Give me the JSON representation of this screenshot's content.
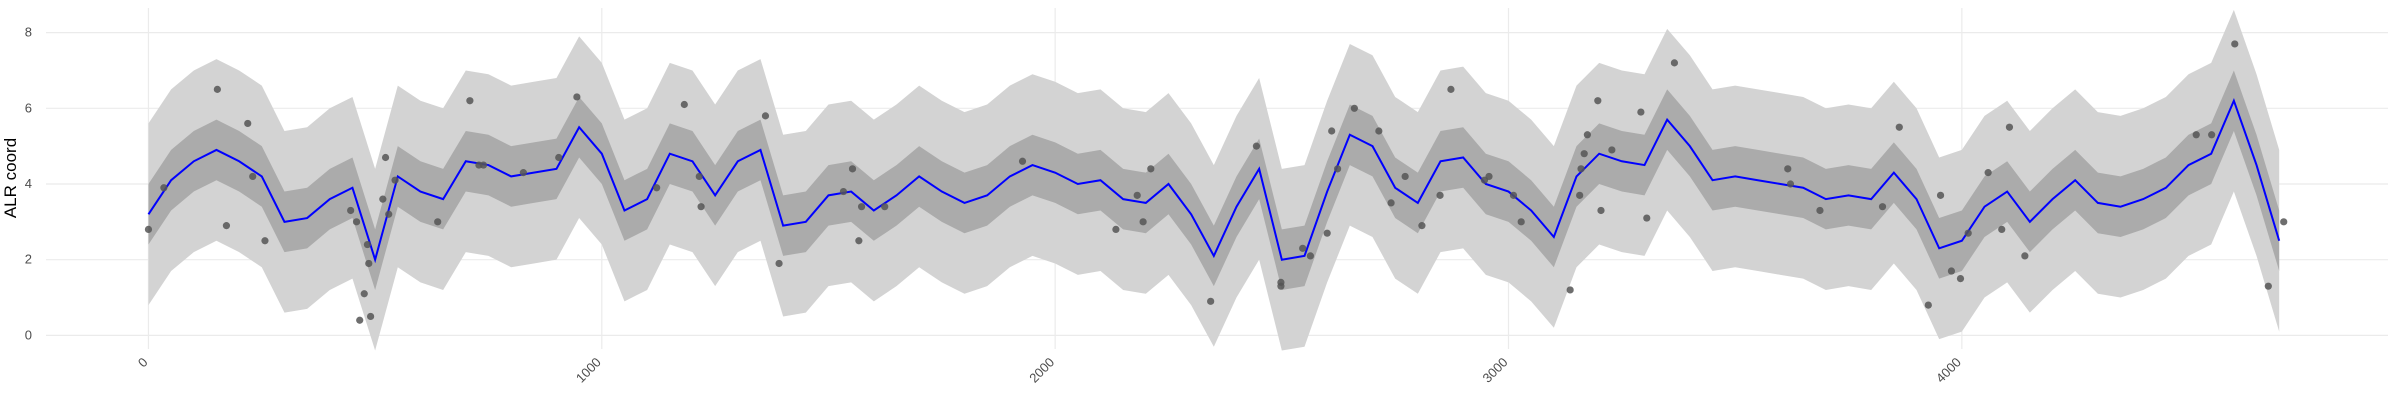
{
  "chart_data": {
    "type": "line",
    "y_label": "ALR coord",
    "xlim": [
      -226,
      4940
    ],
    "ylim": [
      -0.36,
      8.65
    ],
    "xticks": [
      0,
      1000,
      2000,
      3000,
      4000
    ],
    "yticks": [
      0,
      2,
      4,
      6,
      8
    ],
    "grid": true,
    "x": [
      0,
      50,
      100,
      150,
      200,
      250,
      300,
      350,
      400,
      450,
      500,
      550,
      600,
      650,
      700,
      750,
      800,
      850,
      900,
      950,
      1000,
      1050,
      1100,
      1150,
      1200,
      1250,
      1300,
      1350,
      1400,
      1450,
      1500,
      1550,
      1600,
      1650,
      1700,
      1750,
      1800,
      1850,
      1900,
      1950,
      2000,
      2050,
      2100,
      2150,
      2200,
      2250,
      2300,
      2350,
      2400,
      2450,
      2500,
      2550,
      2600,
      2650,
      2700,
      2750,
      2800,
      2850,
      2900,
      2950,
      3000,
      3050,
      3100,
      3150,
      3200,
      3250,
      3300,
      3350,
      3400,
      3450,
      3500,
      3550,
      3600,
      3650,
      3700,
      3750,
      3800,
      3850,
      3900,
      3950,
      4000,
      4050,
      4100,
      4150,
      4200,
      4250,
      4300,
      4350,
      4400,
      4450,
      4500,
      4550,
      4600,
      4650,
      4700
    ],
    "bands": [
      {
        "color": "#d3d3d3",
        "lower": [
          0.8,
          1.7,
          2.2,
          2.5,
          2.2,
          1.8,
          0.6,
          0.7,
          1.2,
          1.5,
          -0.4,
          1.8,
          1.4,
          1.2,
          2.2,
          2.1,
          1.8,
          1.9,
          2.0,
          3.1,
          2.4,
          0.9,
          1.2,
          2.4,
          2.2,
          1.3,
          2.2,
          2.5,
          0.5,
          0.6,
          1.3,
          1.4,
          0.9,
          1.3,
          1.8,
          1.4,
          1.1,
          1.3,
          1.8,
          2.1,
          1.9,
          1.6,
          1.7,
          1.2,
          1.1,
          1.6,
          0.8,
          -0.3,
          1.0,
          2.0,
          -0.4,
          -0.3,
          1.4,
          2.9,
          2.6,
          1.5,
          1.1,
          2.2,
          2.3,
          1.6,
          1.4,
          0.9,
          0.2,
          1.8,
          2.4,
          2.2,
          2.1,
          3.3,
          2.6,
          1.7,
          1.8,
          1.7,
          1.6,
          1.5,
          1.2,
          1.3,
          1.2,
          1.9,
          1.2,
          -0.1,
          0.1,
          1.0,
          1.4,
          0.6,
          1.2,
          1.7,
          1.1,
          1.0,
          1.2,
          1.5,
          2.1,
          2.4,
          3.8,
          2.1,
          0.1
        ],
        "upper": [
          5.6,
          6.5,
          7.0,
          7.3,
          7.0,
          6.6,
          5.4,
          5.5,
          6.0,
          6.3,
          4.4,
          6.6,
          6.2,
          6.0,
          7.0,
          6.9,
          6.6,
          6.7,
          6.8,
          7.9,
          7.2,
          5.7,
          6.0,
          7.2,
          7.0,
          6.1,
          7.0,
          7.3,
          5.3,
          5.4,
          6.1,
          6.2,
          5.7,
          6.1,
          6.6,
          6.2,
          5.9,
          6.1,
          6.6,
          6.9,
          6.7,
          6.4,
          6.5,
          6.0,
          5.9,
          6.4,
          5.6,
          4.5,
          5.8,
          6.8,
          4.4,
          4.5,
          6.2,
          7.7,
          7.4,
          6.3,
          5.9,
          7.0,
          7.1,
          6.4,
          6.2,
          5.7,
          5.0,
          6.6,
          7.2,
          7.0,
          6.9,
          8.1,
          7.4,
          6.5,
          6.6,
          6.5,
          6.4,
          6.3,
          6.0,
          6.1,
          6.0,
          6.7,
          6.0,
          4.7,
          4.9,
          5.8,
          6.2,
          5.4,
          6.0,
          6.5,
          5.9,
          5.8,
          6.0,
          6.3,
          6.9,
          7.2,
          8.6,
          6.9,
          4.9
        ]
      },
      {
        "color": "#ababab",
        "lower": [
          2.4,
          3.3,
          3.8,
          4.1,
          3.8,
          3.4,
          2.2,
          2.3,
          2.8,
          3.1,
          1.2,
          3.4,
          3.0,
          2.8,
          3.8,
          3.7,
          3.4,
          3.5,
          3.6,
          4.7,
          4.0,
          2.5,
          2.8,
          4.0,
          3.8,
          2.9,
          3.8,
          4.1,
          2.1,
          2.2,
          2.9,
          3.0,
          2.5,
          2.9,
          3.4,
          3.0,
          2.7,
          2.9,
          3.4,
          3.7,
          3.5,
          3.2,
          3.3,
          2.8,
          2.7,
          3.2,
          2.4,
          1.3,
          2.6,
          3.6,
          1.2,
          1.3,
          3.0,
          4.5,
          4.2,
          3.1,
          2.7,
          3.8,
          3.9,
          3.2,
          3.0,
          2.5,
          1.8,
          3.4,
          4.0,
          3.8,
          3.7,
          4.9,
          4.2,
          3.3,
          3.4,
          3.3,
          3.2,
          3.1,
          2.8,
          2.9,
          2.8,
          3.5,
          2.8,
          1.5,
          1.7,
          2.6,
          3.0,
          2.2,
          2.8,
          3.3,
          2.7,
          2.6,
          2.8,
          3.1,
          3.7,
          4.0,
          5.4,
          3.7,
          1.7
        ],
        "upper": [
          4.0,
          4.9,
          5.4,
          5.7,
          5.4,
          5.0,
          3.8,
          3.9,
          4.4,
          4.7,
          2.8,
          5.0,
          4.6,
          4.4,
          5.4,
          5.3,
          5.0,
          5.1,
          5.2,
          6.3,
          5.6,
          4.1,
          4.4,
          5.6,
          5.4,
          4.5,
          5.4,
          5.7,
          3.7,
          3.8,
          4.5,
          4.6,
          4.1,
          4.5,
          5.0,
          4.6,
          4.3,
          4.5,
          5.0,
          5.3,
          5.1,
          4.8,
          4.9,
          4.4,
          4.3,
          4.8,
          4.0,
          2.9,
          4.2,
          5.2,
          2.8,
          2.9,
          4.6,
          6.1,
          5.8,
          4.7,
          4.3,
          5.4,
          5.5,
          4.8,
          4.6,
          4.1,
          3.4,
          5.0,
          5.6,
          5.4,
          5.3,
          6.5,
          5.8,
          4.9,
          5.0,
          4.9,
          4.8,
          4.7,
          4.4,
          4.5,
          4.4,
          5.1,
          4.4,
          3.1,
          3.3,
          4.2,
          4.6,
          3.8,
          4.4,
          4.9,
          4.3,
          4.2,
          4.4,
          4.7,
          5.3,
          5.6,
          7.0,
          5.3,
          3.3
        ]
      }
    ],
    "mean": {
      "color": "#0000ff",
      "values": [
        3.2,
        4.1,
        4.6,
        4.9,
        4.6,
        4.2,
        3.0,
        3.1,
        3.6,
        3.9,
        2.0,
        4.2,
        3.8,
        3.6,
        4.6,
        4.5,
        4.2,
        4.3,
        4.4,
        5.5,
        4.8,
        3.3,
        3.6,
        4.8,
        4.6,
        3.7,
        4.6,
        4.9,
        2.9,
        3.0,
        3.7,
        3.8,
        3.3,
        3.7,
        4.2,
        3.8,
        3.5,
        3.7,
        4.2,
        4.5,
        4.3,
        4.0,
        4.1,
        3.6,
        3.5,
        4.0,
        3.2,
        2.1,
        3.4,
        4.4,
        2.0,
        2.1,
        3.8,
        5.3,
        5.0,
        3.9,
        3.5,
        4.6,
        4.7,
        4.0,
        3.8,
        3.3,
        2.6,
        4.2,
        4.8,
        4.6,
        4.5,
        5.7,
        5.0,
        4.1,
        4.2,
        4.1,
        4.0,
        3.9,
        3.6,
        3.7,
        3.6,
        4.3,
        3.6,
        2.3,
        2.5,
        3.4,
        3.8,
        3.0,
        3.6,
        4.1,
        3.5,
        3.4,
        3.6,
        3.9,
        4.5,
        4.8,
        6.2,
        4.5,
        2.5
      ]
    },
    "points": {
      "color": "#555555",
      "x": [
        0,
        34,
        152,
        172,
        219,
        230,
        257,
        446,
        459,
        466,
        476,
        483,
        486,
        490,
        517,
        523,
        530,
        544,
        638,
        709,
        729,
        739,
        827,
        905,
        945,
        1121,
        1182,
        1215,
        1219,
        1361,
        1391,
        1533,
        1553,
        1567,
        1573,
        1624,
        1928,
        2134,
        2181,
        2194,
        2211,
        2343,
        2444,
        2498,
        2498,
        2546,
        2563,
        2600,
        2610,
        2623,
        2660,
        2714,
        2741,
        2772,
        2809,
        2849,
        2873,
        2947,
        2957,
        3011,
        3028,
        3136,
        3157,
        3160,
        3167,
        3174,
        3197,
        3204,
        3228,
        3292,
        3305,
        3366,
        3616,
        3622,
        3687,
        3825,
        3862,
        3926,
        3953,
        3977,
        3997,
        4014,
        4058,
        4088,
        4105,
        4139,
        4517,
        4551,
        4602,
        4676,
        4710
      ],
      "y": [
        2.8,
        3.9,
        6.5,
        2.9,
        5.6,
        4.2,
        2.5,
        3.3,
        3.0,
        0.4,
        1.1,
        2.4,
        1.9,
        0.5,
        3.6,
        4.7,
        3.2,
        4.1,
        3.0,
        6.2,
        4.5,
        4.5,
        4.3,
        4.7,
        6.3,
        3.9,
        6.1,
        4.2,
        3.4,
        5.8,
        1.9,
        3.8,
        4.4,
        2.5,
        3.4,
        3.4,
        4.6,
        2.8,
        3.7,
        3.0,
        4.4,
        0.9,
        5.0,
        1.4,
        1.3,
        2.3,
        2.1,
        2.7,
        5.4,
        4.4,
        6.0,
        5.4,
        3.5,
        4.2,
        2.9,
        3.7,
        6.5,
        4.1,
        4.2,
        3.7,
        3.0,
        1.2,
        3.7,
        4.4,
        4.8,
        5.3,
        6.2,
        3.3,
        4.9,
        5.9,
        3.1,
        7.2,
        4.4,
        4.0,
        3.3,
        3.4,
        5.5,
        0.8,
        3.7,
        1.7,
        1.5,
        2.7,
        4.3,
        2.8,
        5.5,
        2.1,
        5.3,
        5.3,
        7.7,
        1.3,
        3.0
      ]
    }
  }
}
